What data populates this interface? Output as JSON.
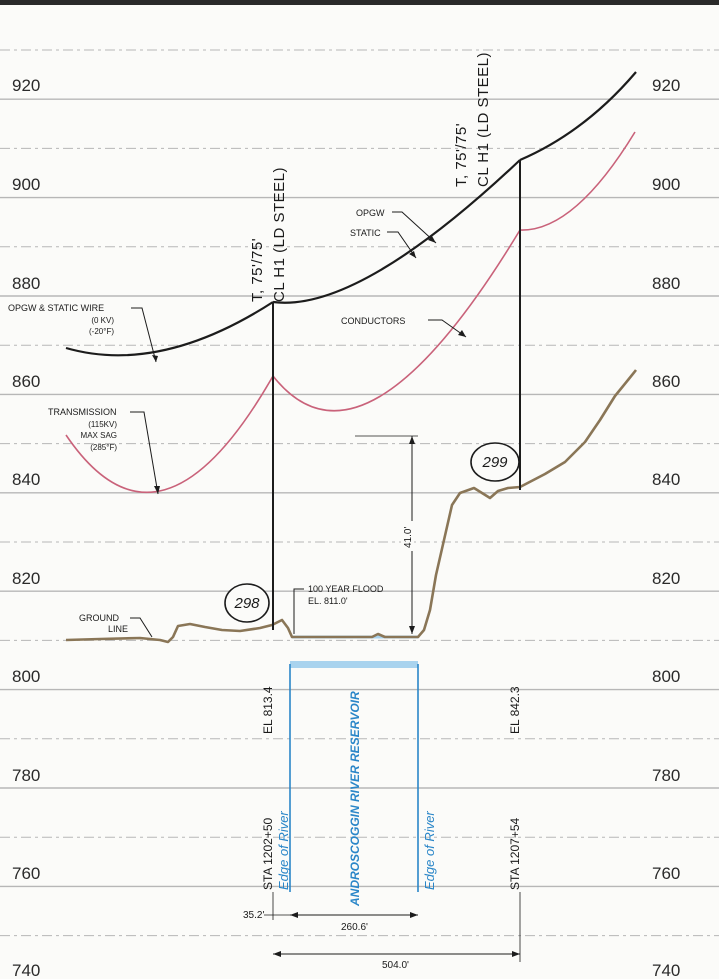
{
  "elevations": {
    "ticks": [
      "920",
      "900",
      "880",
      "860",
      "840",
      "820",
      "800",
      "780",
      "760",
      "740"
    ]
  },
  "towers": {
    "left": {
      "line1": "T, 75'/75'",
      "line2": "CL  H1  (LD STEEL)",
      "number": "298",
      "sta": "STA  1202+50",
      "el": "EL  813.4"
    },
    "right": {
      "line1": "T, 75'/75'",
      "line2": "CL  H1  (LD STEEL)",
      "number": "299",
      "sta": "STA  1207+54",
      "el": "EL  842.3"
    }
  },
  "annotations": {
    "opgw_static_wire": [
      "OPGW & STATIC WIRE",
      "(0 KV)",
      "(-20°F)"
    ],
    "transmission": [
      "TRANSMISSION",
      "(115KV)",
      "MAX SAG",
      "(285°F)"
    ],
    "ground_line": [
      "GROUND",
      "LINE"
    ],
    "opgw": "OPGW",
    "static": "STATIC",
    "conductors": "CONDUCTORS",
    "flood": [
      "100 YEAR FLOOD",
      "EL. 811.0'"
    ]
  },
  "river": {
    "edge_left": "Edge of River",
    "edge_right": "Edge of River",
    "name": "ANDROSCOGGIN RIVER RESERVOIR"
  },
  "dimensions": {
    "clearance": "41.0'",
    "offset": "35.2'",
    "river_width": "260.6'",
    "span": "504.0'"
  },
  "colors": {
    "shield": "#1c1c1c",
    "conductor": "#c9627a",
    "ground": "#8a7657",
    "water": "#2a86c8",
    "flood": "#a9d3ee",
    "grid": "#b7b7b7"
  }
}
